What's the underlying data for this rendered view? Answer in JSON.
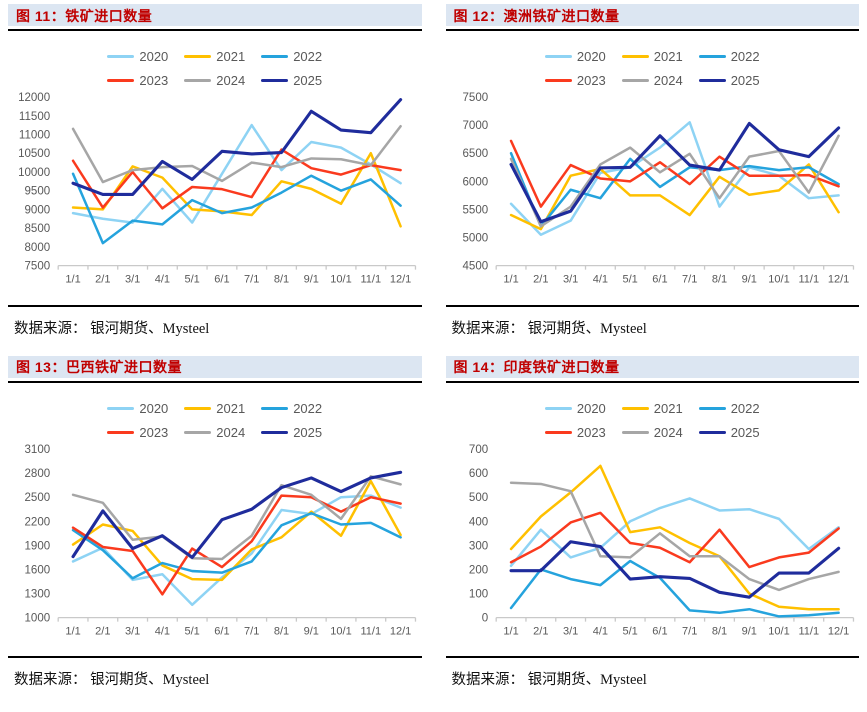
{
  "colors": {
    "series": {
      "2020": "#8ed3f4",
      "2021": "#ffc000",
      "2022": "#25a3dd",
      "2023": "#fa3a1e",
      "2024": "#a6a6a6",
      "2025": "#1f2c9c"
    },
    "title_bg": "#dce6f2",
    "title_text": "#c00000",
    "axis_text": "#595959",
    "axis_line": "#c9c9c9"
  },
  "legend_years": [
    "2020",
    "2021",
    "2022",
    "2023",
    "2024",
    "2025"
  ],
  "chart_data": [
    {
      "type": "line",
      "title": "图 11：铁矿进口数量",
      "source": "数据来源：  银河期货、Mysteel",
      "ylim": [
        7500,
        12000
      ],
      "ytick_step": 500,
      "x": [
        "1/1",
        "2/1",
        "3/1",
        "4/1",
        "5/1",
        "6/1",
        "7/1",
        "8/1",
        "9/1",
        "10/1",
        "11/1",
        "12/1"
      ],
      "series": [
        {
          "name": "2020",
          "values": [
            8900,
            8750,
            8650,
            9550,
            8650,
            9950,
            11250,
            10050,
            10800,
            10650,
            10200,
            9700
          ]
        },
        {
          "name": "2021",
          "values": [
            9050,
            9000,
            10150,
            9850,
            9000,
            8950,
            8850,
            9750,
            9550,
            9150,
            10500,
            8550
          ]
        },
        {
          "name": "2022",
          "values": [
            9950,
            8100,
            8700,
            8600,
            9250,
            8900,
            9050,
            9450,
            9900,
            9500,
            9800,
            9100
          ]
        },
        {
          "name": "2023",
          "values": [
            10300,
            9050,
            10000,
            9030,
            9600,
            9540,
            9330,
            10600,
            10100,
            9930,
            10180,
            10050
          ]
        },
        {
          "name": "2024",
          "values": [
            11150,
            9730,
            10050,
            10130,
            10160,
            9760,
            10250,
            10130,
            10360,
            10340,
            10180,
            11220
          ]
        },
        {
          "name": "2025",
          "values": [
            9700,
            9400,
            9400,
            10280,
            9800,
            10550,
            10480,
            10520,
            11620,
            11120,
            11050,
            11930
          ]
        }
      ]
    },
    {
      "type": "line",
      "title": "图 12：澳洲铁矿进口数量",
      "source": "数据来源：  银河期货、Mysteel",
      "ylim": [
        4500,
        7500
      ],
      "ytick_step": 500,
      "x": [
        "1/1",
        "2/1",
        "3/1",
        "4/1",
        "5/1",
        "6/1",
        "7/1",
        "8/1",
        "9/1",
        "10/1",
        "11/1",
        "12/1"
      ],
      "series": [
        {
          "name": "2020",
          "values": [
            5600,
            5050,
            5300,
            6150,
            6250,
            6600,
            7050,
            5550,
            6250,
            6100,
            5700,
            5750
          ]
        },
        {
          "name": "2021",
          "values": [
            5400,
            5150,
            6100,
            6220,
            5750,
            5750,
            5400,
            6080,
            5760,
            5840,
            6300,
            5450
          ]
        },
        {
          "name": "2022",
          "values": [
            6500,
            5200,
            5850,
            5700,
            6400,
            5900,
            6250,
            6200,
            6270,
            6200,
            6250,
            5950
          ]
        },
        {
          "name": "2023",
          "values": [
            6720,
            5550,
            6290,
            6050,
            6000,
            6340,
            5950,
            6440,
            6100,
            6100,
            6110,
            5910
          ]
        },
        {
          "name": "2024",
          "values": [
            6400,
            5200,
            5550,
            6300,
            6600,
            6160,
            6490,
            5700,
            6440,
            6540,
            5800,
            6810
          ]
        },
        {
          "name": "2025",
          "values": [
            6300,
            5280,
            5470,
            6240,
            6250,
            6810,
            6290,
            6200,
            7030,
            6560,
            6440,
            6950
          ]
        }
      ]
    },
    {
      "type": "line",
      "title": "图 13：巴西铁矿进口数量",
      "source": "数据来源：  银河期货、Mysteel",
      "ylim": [
        1000,
        3100
      ],
      "ytick_step": 300,
      "x": [
        "1/1",
        "2/1",
        "3/1",
        "4/1",
        "5/1",
        "6/1",
        "7/1",
        "8/1",
        "9/1",
        "10/1",
        "11/1",
        "12/1"
      ],
      "series": [
        {
          "name": "2020",
          "values": [
            1700,
            1870,
            1470,
            1540,
            1160,
            1500,
            1800,
            2340,
            2290,
            2500,
            2520,
            2370
          ]
        },
        {
          "name": "2021",
          "values": [
            1910,
            2160,
            2080,
            1650,
            1480,
            1470,
            1850,
            2000,
            2320,
            2020,
            2700,
            2030
          ]
        },
        {
          "name": "2022",
          "values": [
            2090,
            1840,
            1490,
            1680,
            1580,
            1560,
            1700,
            2150,
            2300,
            2160,
            2180,
            2000
          ]
        },
        {
          "name": "2023",
          "values": [
            2120,
            1880,
            1830,
            1290,
            1860,
            1630,
            1950,
            2520,
            2500,
            2320,
            2500,
            2420
          ]
        },
        {
          "name": "2024",
          "values": [
            2530,
            2430,
            1970,
            2010,
            1740,
            1730,
            2020,
            2650,
            2530,
            2230,
            2760,
            2660
          ]
        },
        {
          "name": "2025",
          "values": [
            1760,
            2330,
            1860,
            2020,
            1750,
            2220,
            2350,
            2620,
            2740,
            2570,
            2740,
            2810
          ]
        }
      ]
    },
    {
      "type": "line",
      "title": "图 14：印度铁矿进口数量",
      "source": "数据来源：  银河期货、Mysteel",
      "ylim": [
        0,
        700
      ],
      "ytick_step": 100,
      "x": [
        "1/1",
        "2/1",
        "3/1",
        "4/1",
        "5/1",
        "6/1",
        "7/1",
        "8/1",
        "9/1",
        "10/1",
        "11/1",
        "12/1"
      ],
      "series": [
        {
          "name": "2020",
          "values": [
            215,
            365,
            250,
            290,
            400,
            455,
            495,
            445,
            450,
            410,
            285,
            375
          ]
        },
        {
          "name": "2021",
          "values": [
            285,
            420,
            520,
            630,
            355,
            375,
            310,
            255,
            100,
            45,
            35,
            35
          ]
        },
        {
          "name": "2022",
          "values": [
            40,
            200,
            160,
            135,
            235,
            165,
            30,
            20,
            35,
            5,
            10,
            20
          ]
        },
        {
          "name": "2023",
          "values": [
            230,
            295,
            395,
            435,
            310,
            290,
            230,
            365,
            210,
            250,
            270,
            370
          ]
        },
        {
          "name": "2024",
          "values": [
            560,
            555,
            525,
            255,
            250,
            350,
            255,
            255,
            160,
            115,
            160,
            190
          ]
        },
        {
          "name": "2025",
          "values": [
            195,
            195,
            315,
            295,
            160,
            170,
            163,
            105,
            85,
            185,
            185,
            288
          ]
        }
      ]
    }
  ]
}
